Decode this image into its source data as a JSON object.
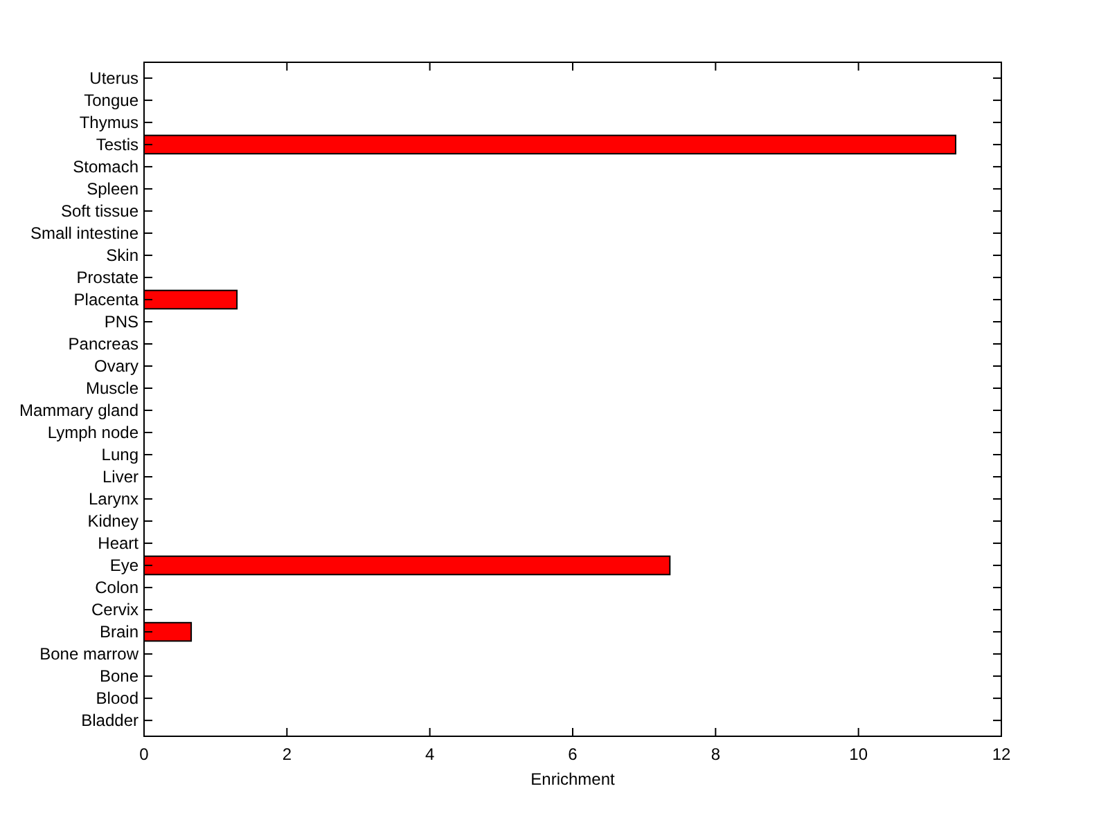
{
  "chart_data": {
    "type": "bar",
    "orientation": "horizontal",
    "xlabel": "Enrichment",
    "categories": [
      "Uterus",
      "Tongue",
      "Thymus",
      "Testis",
      "Stomach",
      "Spleen",
      "Soft tissue",
      "Small intestine",
      "Skin",
      "Prostate",
      "Placenta",
      "PNS",
      "Pancreas",
      "Ovary",
      "Muscle",
      "Mammary gland",
      "Lymph node",
      "Lung",
      "Liver",
      "Larynx",
      "Kidney",
      "Heart",
      "Eye",
      "Colon",
      "Cervix",
      "Brain",
      "Bone marrow",
      "Bone",
      "Blood",
      "Bladder"
    ],
    "values": [
      0,
      0,
      0,
      11.36,
      0,
      0,
      0,
      0,
      0,
      0,
      1.3,
      0,
      0,
      0,
      0,
      0,
      0,
      0,
      0,
      0,
      0,
      0,
      7.36,
      0,
      0,
      0.66,
      0,
      0,
      0,
      0
    ],
    "color": "#ff0000",
    "xlim": [
      0,
      12
    ],
    "xticks": [
      0,
      2,
      4,
      6,
      8,
      10,
      12
    ],
    "grid": false
  }
}
